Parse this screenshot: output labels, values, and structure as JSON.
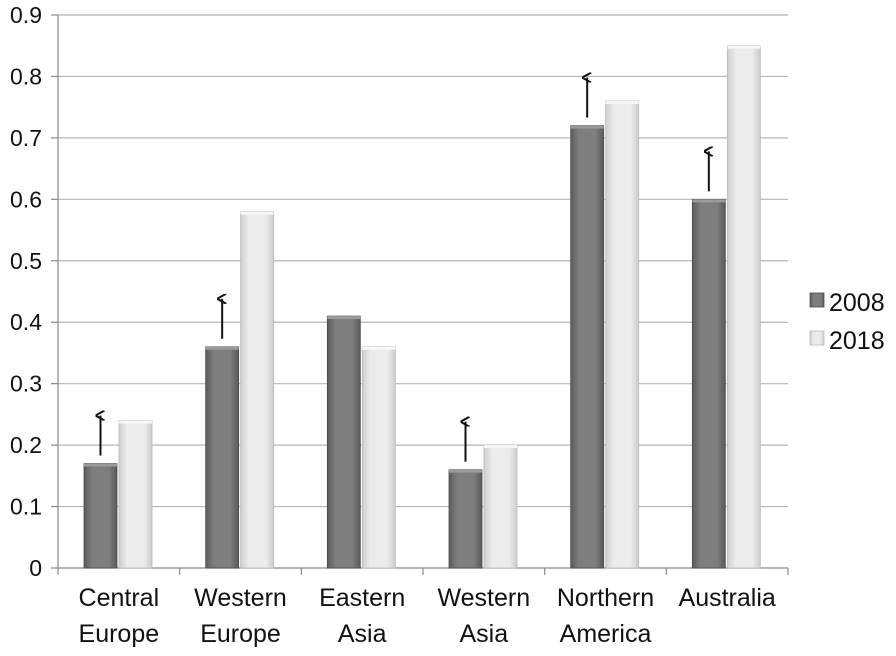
{
  "chart_data": {
    "type": "bar",
    "categories": [
      [
        "Central",
        "Europe"
      ],
      [
        "Western",
        "Europe"
      ],
      [
        "Eastern",
        "Asia"
      ],
      [
        "Western",
        "Asia"
      ],
      [
        "Northern",
        "America"
      ],
      [
        "Australia"
      ]
    ],
    "series": [
      {
        "name": "2008",
        "values": [
          0.17,
          0.36,
          0.41,
          0.16,
          0.72,
          0.6
        ],
        "color": "#7a7a7a"
      },
      {
        "name": "2018",
        "values": [
          0.24,
          0.58,
          0.36,
          0.2,
          0.76,
          0.85
        ],
        "color": "#e4e4e4"
      }
    ],
    "arrows_on_2008": [
      true,
      true,
      false,
      true,
      true,
      true
    ],
    "ylim": [
      0,
      0.9
    ],
    "yticks": [
      "0",
      "0.1",
      "0.2",
      "0.3",
      "0.4",
      "0.5",
      "0.6",
      "0.7",
      "0.8",
      "0.9"
    ],
    "grid": true,
    "legend_position": "right",
    "title": "",
    "xlabel": "",
    "ylabel": ""
  }
}
